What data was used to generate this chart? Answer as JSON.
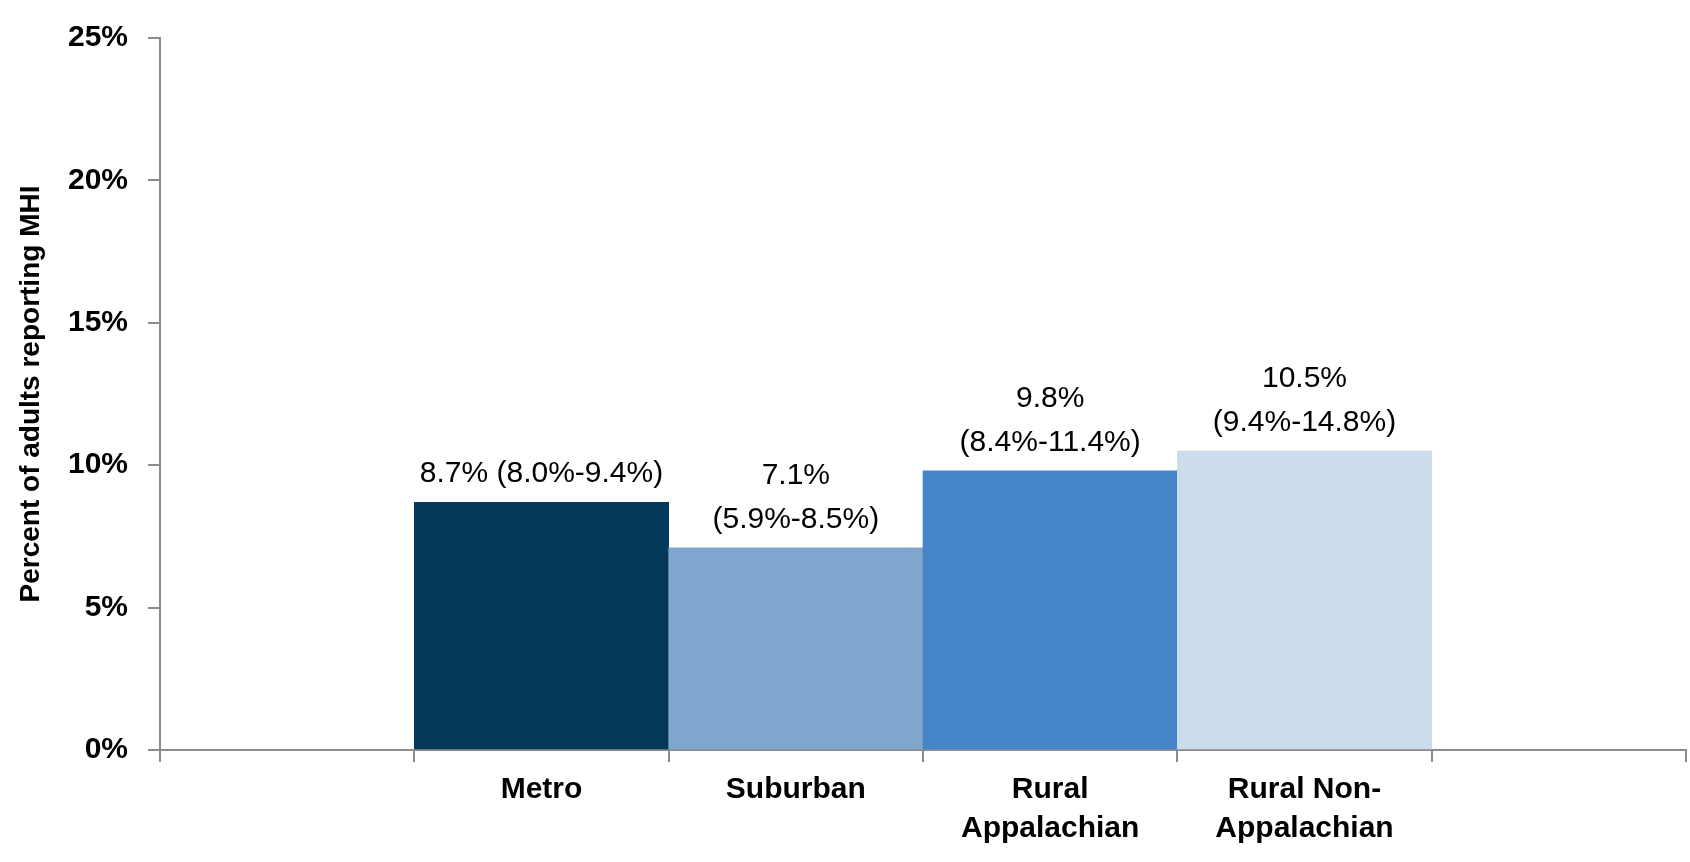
{
  "chart_data": {
    "type": "bar",
    "ylabel": "Percent of adults reporting MHI",
    "categories": [
      null,
      "Metro",
      "Suburban",
      "Rural Appalachian",
      "Rural Non-Appalachian",
      null
    ],
    "values": [
      null,
      8.7,
      7.1,
      9.8,
      10.5,
      null
    ],
    "colors": [
      null,
      "#05395a",
      "#7fa6cc",
      "#4485c9",
      "#ccdcec",
      null
    ],
    "value_labels": [
      null,
      "8.7% (8.0%-9.4%)",
      "7.1% (5.9%-8.5%)",
      "9.8% (8.4%-11.4%)",
      "10.5% (9.4%-14.8%)",
      null
    ],
    "ylim": [
      0,
      25
    ],
    "yticks": [
      {
        "value": 0,
        "label": "0%"
      },
      {
        "value": 5,
        "label": "5%"
      },
      {
        "value": 10,
        "label": "10%"
      },
      {
        "value": 15,
        "label": "15%"
      },
      {
        "value": 20,
        "label": "20%"
      },
      {
        "value": 25,
        "label": "25%"
      }
    ]
  }
}
